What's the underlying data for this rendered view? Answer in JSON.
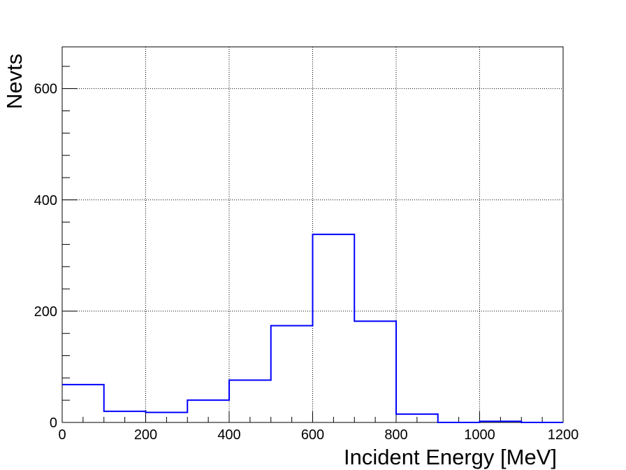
{
  "chart_data": {
    "type": "histogram",
    "xlabel": "Incident Energy [MeV]",
    "ylabel": "Nevts",
    "xlim": [
      0,
      1200
    ],
    "ylim": [
      0,
      675
    ],
    "grid": true,
    "line_color": "#0000ff",
    "x_ticks": [
      0,
      200,
      400,
      600,
      800,
      1000,
      1200
    ],
    "y_ticks": [
      0,
      200,
      400,
      600
    ],
    "bin_edges": [
      0,
      100,
      200,
      300,
      400,
      500,
      600,
      700,
      800,
      900,
      1000,
      1100,
      1200
    ],
    "values": [
      68,
      20,
      18,
      40,
      76,
      174,
      338,
      182,
      15,
      0,
      2,
      0
    ]
  }
}
